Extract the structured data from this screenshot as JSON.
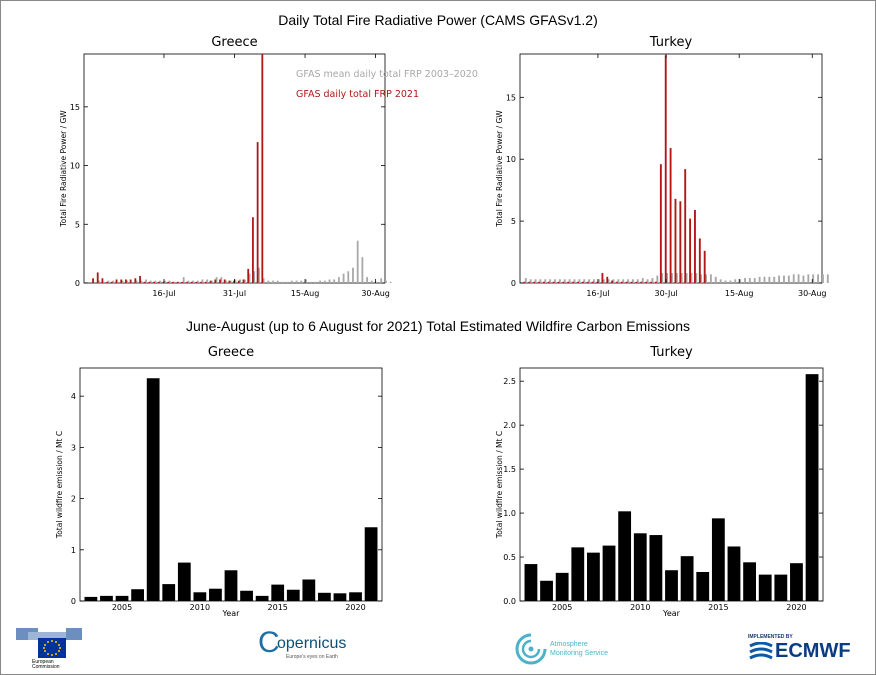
{
  "main_title": "Daily Total Fire Radiative Power (CAMS GFASv1.2)",
  "section_title": "June-August (up to 6 August for 2021) Total Estimated Wildfire Carbon Emissions",
  "colors": {
    "mean": "#a8a8a8",
    "daily2021": "#b01818",
    "bar": "#000000"
  },
  "logos": {
    "ec_line1": "European",
    "ec_line2": "Commission",
    "copernicus_name": "opernicus",
    "copernicus_c": "C",
    "copernicus_tag": "Europe's eyes on Earth",
    "cams_line1": "Atmosphere",
    "cams_line2": "Monitoring Service",
    "ecmwf_implemented": "IMPLEMENTED BY",
    "ecmwf_name": "ECMWF"
  },
  "chart_data": [
    {
      "type": "bar",
      "title": "Greece",
      "ylabel": "Total Fire Radiative Power / GW",
      "xlabel": "",
      "ylim": [
        0,
        19.5
      ],
      "yticks": [
        0,
        5,
        10,
        15
      ],
      "xtick_labels": [
        {
          "day": 16,
          "label": "16-Jul"
        },
        {
          "day": 31,
          "label": "31-Jul"
        },
        {
          "day": 46,
          "label": "15-Aug"
        },
        {
          "day": 61,
          "label": "30-Aug"
        }
      ],
      "legend": {
        "mean_label": "GFAS mean daily total FRP  2003–2020",
        "daily_label": "GFAS daily total FRP  2021"
      },
      "mean": [
        0.1,
        0.2,
        0.1,
        0.2,
        0.2,
        0.1,
        0.2,
        0.2,
        0.1,
        0.2,
        0.2,
        0.3,
        0.2,
        0.2,
        0.2,
        0.2,
        0.2,
        0.1,
        0.1,
        0.5,
        0.2,
        0.2,
        0.2,
        0.3,
        0.3,
        0.2,
        0.5,
        0.5,
        0.2,
        0.2,
        0.3,
        0.3,
        0.3,
        0.8,
        1.0,
        1.3,
        0.4,
        0.2,
        0.2,
        0.2,
        0.1,
        0.1,
        0.2,
        0.2,
        0.2,
        0.3,
        0.1,
        0.1,
        0.2,
        0.2,
        0.3,
        0.3,
        0.5,
        0.8,
        1.0,
        1.3,
        3.6,
        2.2,
        0.5,
        0.2,
        0.1,
        0.4,
        0.2,
        0.1
      ],
      "daily": [
        0.4,
        0.9,
        0.4,
        0.1,
        0.1,
        0.3,
        0.3,
        0.3,
        0.3,
        0.4,
        0.6,
        0.1,
        0.1,
        0.1,
        0.1,
        0.1,
        0.1,
        0.1,
        0.1,
        0.1,
        0.1,
        0.1,
        0.1,
        0.1,
        0.1,
        0.2,
        0.3,
        0.3,
        0.3,
        0.2,
        0.2,
        0.2,
        0.3,
        1.2,
        5.6,
        12.0,
        19.5
      ],
      "xdomain": [
        -1,
        63
      ]
    },
    {
      "type": "bar",
      "title": "Turkey",
      "ylabel": "Total Fire Radiative Power / GW",
      "xlabel": "",
      "ylim": [
        0,
        18.5
      ],
      "yticks": [
        0,
        5,
        10,
        15
      ],
      "xtick_labels": [
        {
          "day": 16,
          "label": "16-Jul"
        },
        {
          "day": 30,
          "label": "30-Jul"
        },
        {
          "day": 45,
          "label": "15-Aug"
        },
        {
          "day": 60,
          "label": "30-Aug"
        }
      ],
      "mean": [
        0.4,
        0.3,
        0.3,
        0.3,
        0.3,
        0.3,
        0.3,
        0.3,
        0.3,
        0.3,
        0.3,
        0.3,
        0.3,
        0.3,
        0.3,
        0.3,
        0.3,
        0.3,
        0.3,
        0.3,
        0.3,
        0.3,
        0.3,
        0.3,
        0.4,
        0.3,
        0.4,
        0.6,
        0.8,
        0.8,
        0.8,
        0.8,
        0.8,
        0.8,
        0.8,
        0.8,
        0.7,
        0.7,
        0.7,
        0.5,
        0.3,
        0.2,
        0.2,
        0.3,
        0.3,
        0.4,
        0.4,
        0.4,
        0.5,
        0.5,
        0.5,
        0.5,
        0.6,
        0.6,
        0.6,
        0.7,
        0.7,
        0.6,
        0.7,
        0.7,
        0.7,
        0.7,
        0.7
      ],
      "daily": [
        0.1,
        0.1,
        0.1,
        0.1,
        0.1,
        0.1,
        0.1,
        0.1,
        0.1,
        0.1,
        0.1,
        0.1,
        0.1,
        0.1,
        0.1,
        0.1,
        0.8,
        0.5,
        0.2,
        0.1,
        0.1,
        0.1,
        0.1,
        0.1,
        0.1,
        0.1,
        0.1,
        0.1,
        9.6,
        18.4,
        10.9,
        6.8,
        6.6,
        9.2,
        5.2,
        5.9,
        3.6,
        2.6
      ],
      "xdomain": [
        0,
        62
      ]
    },
    {
      "type": "bar",
      "title": "Greece",
      "ylabel": "Total wildfire emission / Mt C",
      "xlabel": "Year",
      "ylim": [
        0,
        4.55
      ],
      "yticks": [
        0,
        1,
        2,
        3,
        4
      ],
      "xticks": [
        2005,
        2010,
        2015,
        2020
      ],
      "categories": [
        2003,
        2004,
        2005,
        2006,
        2007,
        2008,
        2009,
        2010,
        2011,
        2012,
        2013,
        2014,
        2015,
        2016,
        2017,
        2018,
        2019,
        2020,
        2021
      ],
      "values": [
        0.08,
        0.1,
        0.1,
        0.23,
        4.35,
        0.33,
        0.75,
        0.17,
        0.24,
        0.6,
        0.2,
        0.1,
        0.32,
        0.22,
        0.42,
        0.16,
        0.15,
        0.17,
        1.44
      ],
      "xlim": [
        2002.3,
        2021.7
      ]
    },
    {
      "type": "bar",
      "title": "Turkey",
      "ylabel": "Total wildfire emission / Mt C",
      "xlabel": "Year",
      "ylim": [
        0,
        2.65
      ],
      "yticks": [
        0.0,
        0.5,
        1.0,
        1.5,
        2.0,
        2.5
      ],
      "xticks": [
        2005,
        2010,
        2015,
        2020
      ],
      "categories": [
        2003,
        2004,
        2005,
        2006,
        2007,
        2008,
        2009,
        2010,
        2011,
        2012,
        2013,
        2014,
        2015,
        2016,
        2017,
        2018,
        2019,
        2020,
        2021
      ],
      "values": [
        0.42,
        0.23,
        0.32,
        0.61,
        0.55,
        0.63,
        1.02,
        0.77,
        0.75,
        0.35,
        0.51,
        0.33,
        0.94,
        0.62,
        0.44,
        0.3,
        0.3,
        0.43,
        2.58
      ],
      "xlim": [
        2002.3,
        2021.7
      ]
    }
  ]
}
